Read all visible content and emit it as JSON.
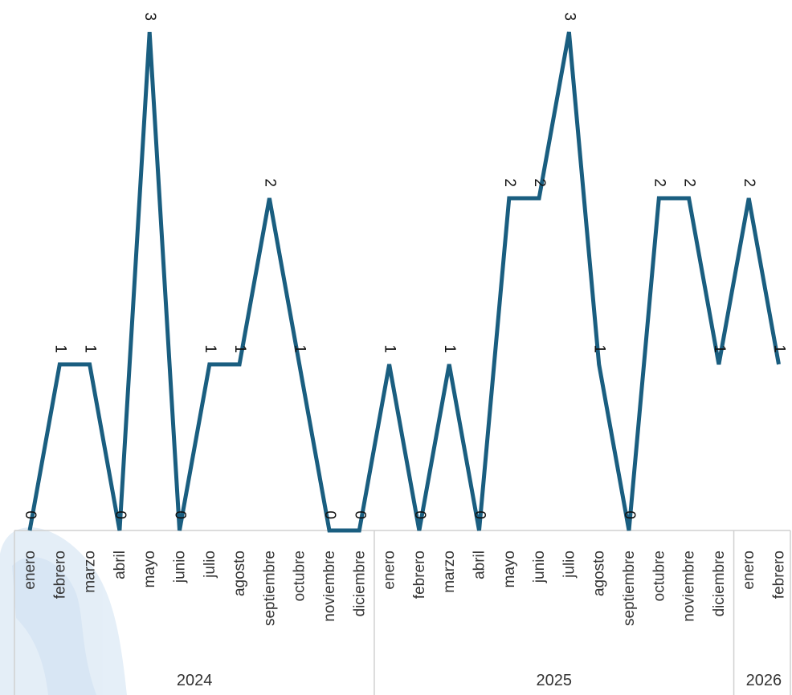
{
  "chart_data": {
    "type": "line",
    "title": "",
    "xlabel": "",
    "ylabel": "",
    "ylim": [
      0,
      3
    ],
    "grid": false,
    "line_color": "#1a5e80",
    "categories": [
      "enero",
      "febrero",
      "marzo",
      "abril",
      "mayo",
      "junio",
      "julio",
      "agosto",
      "septiembre",
      "octubre",
      "noviembre",
      "diciembre",
      "enero",
      "febrero",
      "marzo",
      "abril",
      "mayo",
      "junio",
      "julio",
      "agosto",
      "septiembre",
      "octubre",
      "noviembre",
      "diciembre",
      "enero",
      "febrero"
    ],
    "values": [
      0,
      1,
      1,
      0,
      3,
      0,
      1,
      1,
      2,
      1,
      0,
      0,
      1,
      0,
      1,
      0,
      2,
      2,
      3,
      1,
      0,
      2,
      2,
      1,
      2,
      1
    ],
    "data_labels": [
      "0",
      "1",
      "1",
      "0",
      "3",
      "0",
      "1",
      "1",
      "2",
      "1",
      "0",
      "0",
      "1",
      "0",
      "1",
      "0",
      "2",
      "2",
      "3",
      "1",
      "0",
      "2",
      "2",
      "1",
      "2",
      "1"
    ],
    "years": [
      {
        "label": "2024",
        "count": 12
      },
      {
        "label": "2025",
        "count": 12
      },
      {
        "label": "2026",
        "count": 2
      }
    ]
  }
}
